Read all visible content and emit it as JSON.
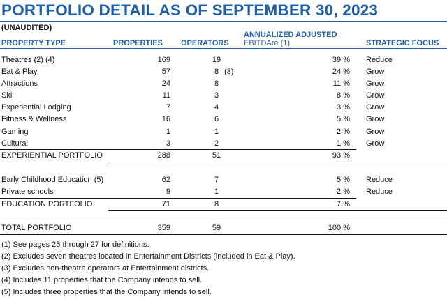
{
  "title": "PORTFOLIO DETAIL AS OF SEPTEMBER 30, 2023",
  "subtitle": "(UNAUDITED)",
  "headers": {
    "property_type": "PROPERTY TYPE",
    "properties": "PROPERTIES",
    "operators": "OPERATORS",
    "ebitdare_line1": "ANNUALIZED ADJUSTED",
    "ebitdare_line2": "EBITDAre (1)",
    "strategic_focus": "STRATEGIC FOCUS"
  },
  "experiential_rows": [
    {
      "name": "Theatres (2) (4)",
      "properties": "169",
      "operators": "19",
      "operators_note": "",
      "ebitdare": "39 %",
      "focus": "Reduce"
    },
    {
      "name": "Eat & Play",
      "properties": "57",
      "operators": "8",
      "operators_note": "(3)",
      "ebitdare": "24 %",
      "focus": "Grow"
    },
    {
      "name": "Attractions",
      "properties": "24",
      "operators": "8",
      "operators_note": "",
      "ebitdare": "11 %",
      "focus": "Grow"
    },
    {
      "name": "Ski",
      "properties": "11",
      "operators": "3",
      "operators_note": "",
      "ebitdare": "8 %",
      "focus": "Grow"
    },
    {
      "name": "Experiential Lodging",
      "properties": "7",
      "operators": "4",
      "operators_note": "",
      "ebitdare": "3 %",
      "focus": "Grow"
    },
    {
      "name": "Fitness & Wellness",
      "properties": "16",
      "operators": "6",
      "operators_note": "",
      "ebitdare": "5 %",
      "focus": "Grow"
    },
    {
      "name": "Gaming",
      "properties": "1",
      "operators": "1",
      "operators_note": "",
      "ebitdare": "2 %",
      "focus": "Grow"
    },
    {
      "name": "Cultural",
      "properties": "3",
      "operators": "2",
      "operators_note": "",
      "ebitdare": "1 %",
      "focus": "Grow"
    }
  ],
  "experiential_total": {
    "name": "EXPERIENTIAL PORTFOLIO",
    "properties": "288",
    "operators": "51",
    "ebitdare": "93 %"
  },
  "education_rows": [
    {
      "name": "Early Childhood Education (5)",
      "properties": "62",
      "operators": "7",
      "ebitdare": "5 %",
      "focus": "Reduce"
    },
    {
      "name": "Private schools",
      "properties": "9",
      "operators": "1",
      "ebitdare": "2 %",
      "focus": "Reduce"
    }
  ],
  "education_total": {
    "name": "EDUCATION PORTFOLIO",
    "properties": "71",
    "operators": "8",
    "ebitdare": "7 %"
  },
  "grand_total": {
    "name": "TOTAL PORTFOLIO",
    "properties": "359",
    "operators": "59",
    "ebitdare": "100 %"
  },
  "footnotes": [
    "(1) See pages 25 through 27 for definitions.",
    "(2) Excludes seven theatres located in Entertainment Districts (included in Eat & Play).",
    "(3) Excludes non-theatre operators at Entertainment districts.",
    "(4) Includes 11 properties that the Company intends to sell.",
    "(5) Includes three properties that the Company intends to sell."
  ],
  "colors": {
    "accent": "#1f5fa8",
    "text": "#111111"
  }
}
